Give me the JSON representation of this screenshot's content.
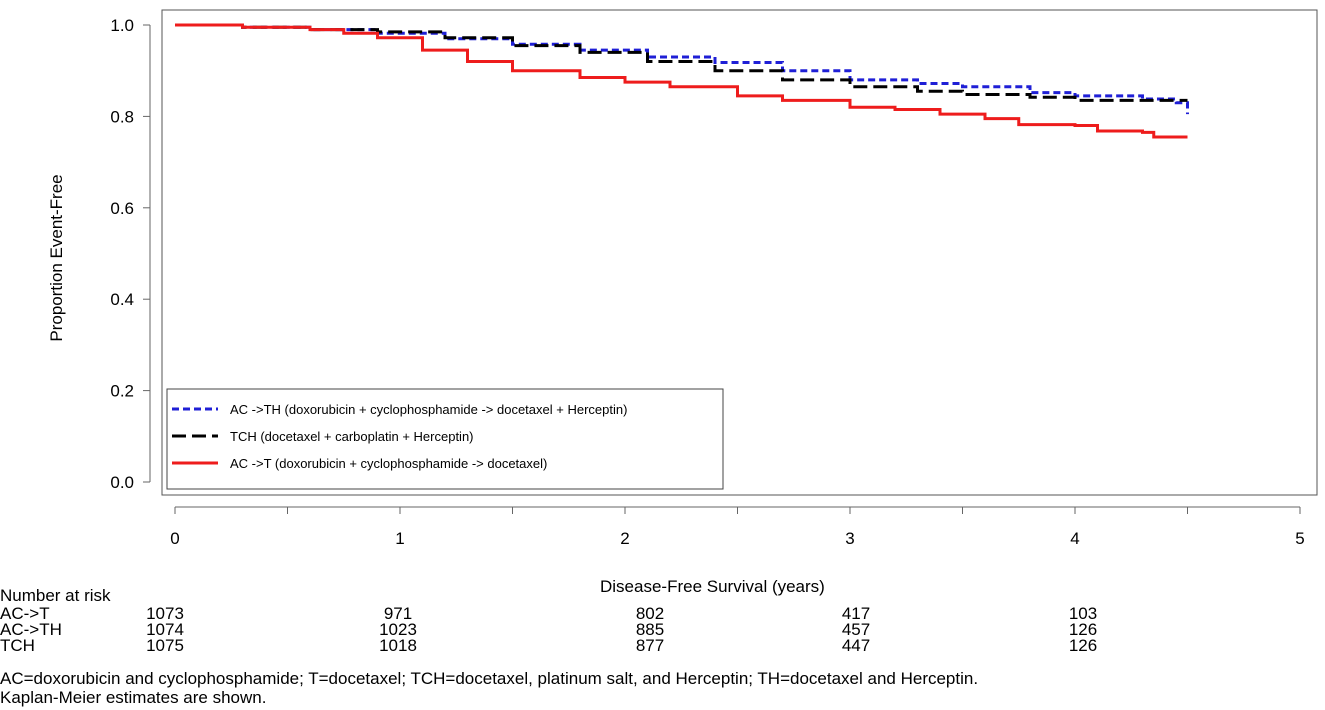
{
  "chart_data": {
    "type": "line",
    "title": "",
    "xlabel": "Disease-Free Survival (years)",
    "ylabel": "Proportion Event-Free",
    "xlim": [
      0,
      5
    ],
    "ylim": [
      0,
      1
    ],
    "x_ticks": [
      "0",
      "1",
      "2",
      "3",
      "4",
      "5"
    ],
    "y_ticks": [
      "0.0",
      "0.2",
      "0.4",
      "0.6",
      "0.8",
      "1.0"
    ],
    "grid": false,
    "legend_position": "bottom-left",
    "series": [
      {
        "name": "AC ->TH (doxorubicin + cyclophosphamide -> docetaxel + Herceptin)",
        "color": "#1f1fd6",
        "style": "dotted",
        "x": [
          0,
          0.3,
          0.6,
          0.9,
          1.2,
          1.5,
          1.8,
          2.1,
          2.4,
          2.7,
          3.0,
          3.3,
          3.5,
          3.8,
          4.0,
          4.3,
          4.45,
          4.5
        ],
        "y": [
          1.0,
          0.995,
          0.99,
          0.982,
          0.97,
          0.958,
          0.945,
          0.93,
          0.918,
          0.9,
          0.88,
          0.872,
          0.865,
          0.852,
          0.845,
          0.838,
          0.83,
          0.805
        ]
      },
      {
        "name": "TCH (docetaxel + carboplatin + Herceptin)",
        "color": "#000000",
        "style": "dashed",
        "x": [
          0,
          0.3,
          0.6,
          0.9,
          1.2,
          1.5,
          1.8,
          2.1,
          2.4,
          2.7,
          3.0,
          3.3,
          3.5,
          3.8,
          4.0,
          4.3,
          4.5
        ],
        "y": [
          1.0,
          0.995,
          0.99,
          0.985,
          0.972,
          0.955,
          0.94,
          0.92,
          0.9,
          0.88,
          0.865,
          0.855,
          0.848,
          0.842,
          0.835,
          0.835,
          0.835
        ]
      },
      {
        "name": "AC ->T (doxorubicin + cyclophosphamide -> docetaxel)",
        "color": "#ee1c1c",
        "style": "solid",
        "x": [
          0,
          0.3,
          0.6,
          0.75,
          0.9,
          1.1,
          1.3,
          1.5,
          1.8,
          2.0,
          2.2,
          2.5,
          2.7,
          3.0,
          3.2,
          3.4,
          3.6,
          3.75,
          4.0,
          4.1,
          4.3,
          4.35,
          4.5
        ],
        "y": [
          1.0,
          0.995,
          0.99,
          0.982,
          0.972,
          0.945,
          0.92,
          0.9,
          0.885,
          0.875,
          0.865,
          0.845,
          0.835,
          0.82,
          0.815,
          0.805,
          0.795,
          0.782,
          0.78,
          0.768,
          0.765,
          0.755,
          0.755
        ]
      }
    ]
  },
  "risk_table": {
    "title": "Number at risk",
    "times": [
      0,
      1,
      2,
      3,
      4
    ],
    "rows": [
      {
        "label": "AC->T",
        "values": [
          "1073",
          "971",
          "802",
          "417",
          "103"
        ]
      },
      {
        "label": "AC->TH",
        "values": [
          "1074",
          "1023",
          "885",
          "457",
          "126"
        ]
      },
      {
        "label": "TCH",
        "values": [
          "1075",
          "1018",
          "877",
          "447",
          "126"
        ]
      }
    ]
  },
  "footnotes": [
    "AC=doxorubicin and cyclophosphamide; T=docetaxel; TCH=docetaxel, platinum salt, and Herceptin; TH=docetaxel and Herceptin.",
    "Kaplan-Meier estimates are shown."
  ]
}
